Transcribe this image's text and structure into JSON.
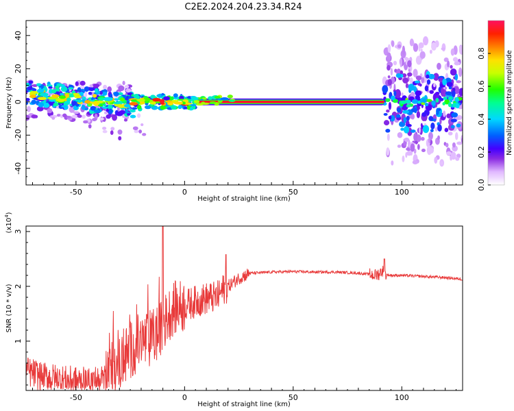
{
  "title": "C2E2.2024.204.23.34.R24",
  "colors": {
    "snr_line": "#e83a3a",
    "frame": "#000000"
  },
  "chart_data": [
    {
      "type": "heatmap",
      "xlabel": "Height of straight line (km)",
      "ylabel": "Frequency (Hz)",
      "xlim": [
        -73,
        128
      ],
      "ylim": [
        -50,
        49
      ],
      "xticks": [
        "-50",
        "0",
        "50",
        "100"
      ],
      "yticks": [
        "-40",
        "-20",
        "0",
        "20",
        "40"
      ],
      "colorbar": {
        "label": "Normalized spectral amplitude",
        "range": [
          0,
          1
        ],
        "ticks": [
          "0.0",
          "0.2",
          "0.4",
          "0.6",
          "0.8"
        ],
        "colormap": "rainbow-magenta"
      },
      "features": [
        {
          "x_range": [
            -73,
            -25
          ],
          "frequency_spread_hz": [
            -12,
            12
          ],
          "amplitude": "0.3-0.9"
        },
        {
          "x_range": [
            -25,
            5
          ],
          "frequency_spread_hz": [
            -5,
            5
          ],
          "amplitude": "0.3-0.9"
        },
        {
          "x_range": [
            5,
            92
          ],
          "frequency_spread_hz": [
            -1.5,
            1.5
          ],
          "amplitude": "0.8-1.0"
        },
        {
          "x_range": [
            92,
            128
          ],
          "frequency_spread_hz": [
            -37,
            37
          ],
          "amplitude": "0.1-0.5"
        }
      ]
    },
    {
      "type": "line",
      "xlabel": "Height of straight line (km)",
      "ylabel": "SNR (10 * v/v)",
      "yscale_note": "(x10",
      "yscale_exp": "4",
      "yscale_close": ")",
      "xlim": [
        -73,
        128
      ],
      "ylim": [
        0.1,
        3.1
      ],
      "xticks": [
        "-50",
        "0",
        "50",
        "100"
      ],
      "yticks": [
        "1",
        "2",
        "3"
      ],
      "series": [
        {
          "x": [
            -73,
            -65,
            -55,
            -45,
            -35,
            -28,
            -22,
            -15,
            -11,
            -8,
            -5,
            0,
            5,
            10,
            15,
            18,
            20,
            25,
            30,
            40,
            50,
            60,
            70,
            80,
            85,
            88,
            90,
            91,
            92,
            95,
            100,
            110,
            120,
            128
          ],
          "y": [
            0.45,
            0.35,
            0.28,
            0.25,
            0.35,
            0.7,
            0.95,
            1.05,
            1.2,
            1.45,
            1.6,
            1.65,
            1.72,
            1.78,
            1.8,
            1.95,
            2.0,
            2.15,
            2.24,
            2.26,
            2.27,
            2.26,
            2.26,
            2.24,
            2.22,
            2.2,
            2.24,
            2.3,
            2.22,
            2.2,
            2.2,
            2.18,
            2.16,
            2.13
          ]
        }
      ]
    }
  ]
}
